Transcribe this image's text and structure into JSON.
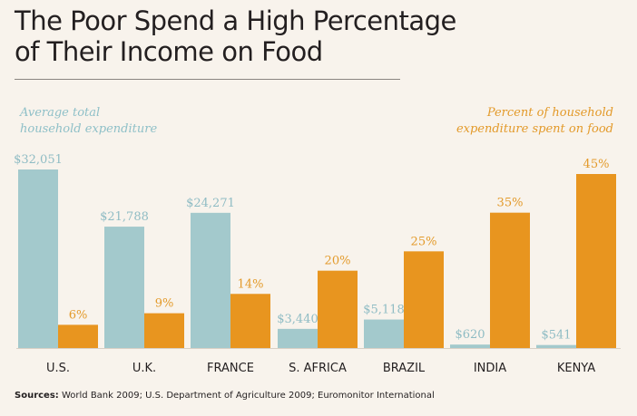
{
  "title_line1": "The Poor Spend a High Percentage",
  "title_line2": "of Their Income on Food",
  "legend_left_line1": "Average total",
  "legend_left_line2": "household expenditure",
  "legend_right_line1": "Percent of household",
  "legend_right_line2": "expenditure spent on food",
  "sources_label": "Sources:",
  "sources_text": "World Bank 2009; U.S. Department of Agriculture 2009; Euromonitor International",
  "colors": {
    "expenditure": "#a3c9cc",
    "food": "#e8951f",
    "expenditure_label": "#8fbcc4",
    "food_label": "#e39a2a",
    "category_label": "#231f20"
  },
  "chart_data": {
    "type": "bar",
    "categories": [
      "U.S.",
      "U.K.",
      "FRANCE",
      "S. AFRICA",
      "BRAZIL",
      "INDIA",
      "KENYA"
    ],
    "series": [
      {
        "name": "Average total household expenditure",
        "unit": "USD",
        "values": [
          32051,
          21788,
          24271,
          3440,
          5118,
          620,
          541
        ],
        "labels": [
          "$32,051",
          "$21,788",
          "$24,271",
          "$3,440",
          "$5,118",
          "$620",
          "$541"
        ]
      },
      {
        "name": "Percent of household expenditure spent on food",
        "unit": "%",
        "values": [
          6,
          9,
          14,
          20,
          25,
          35,
          45
        ],
        "labels": [
          "6%",
          "9%",
          "14%",
          "20%",
          "25%",
          "35%",
          "45%"
        ]
      }
    ],
    "grid": false,
    "legend": "top"
  }
}
